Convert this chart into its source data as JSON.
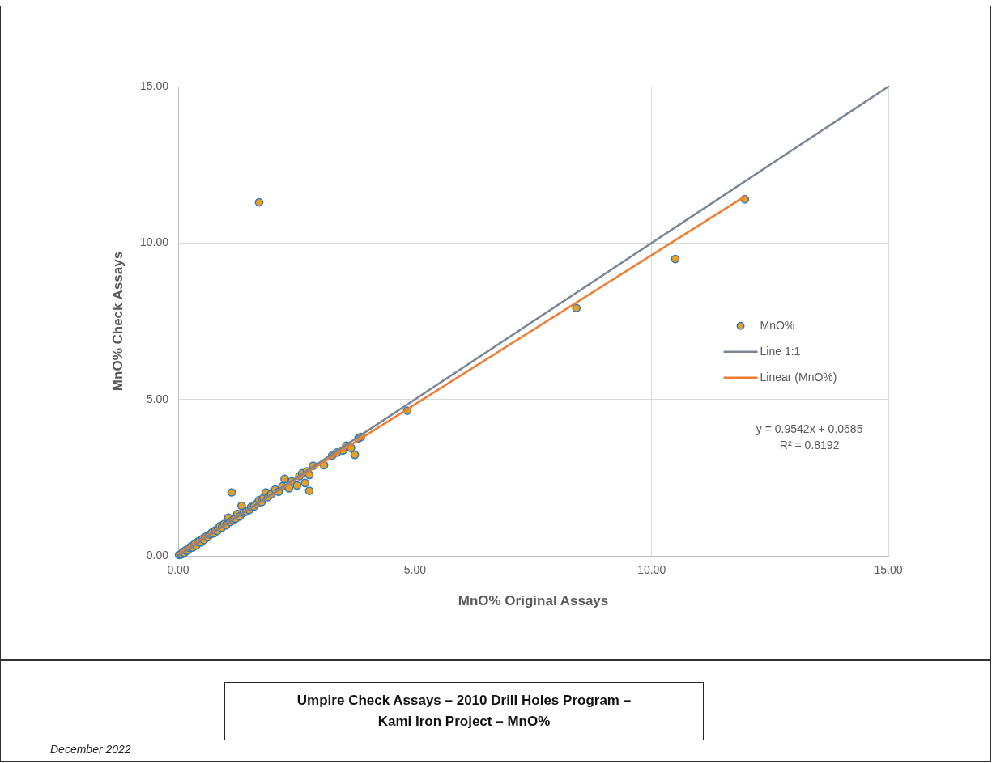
{
  "chart_data": {
    "type": "scatter",
    "title": "Umpire Check Assays – 2010 Drill Holes Program – Kami Iron Project – MnO%",
    "xlabel": "MnO% Original Assays",
    "ylabel": "MnO% Check Assays",
    "annotations": [
      "y = 0.9542x + 0.0685",
      "R² = 0.8192",
      "December 2022"
    ],
    "xlim": [
      0,
      15
    ],
    "ylim": [
      0,
      15
    ],
    "xticks": [
      {
        "value": 0,
        "label": "0.00"
      },
      {
        "value": 5,
        "label": "5.00"
      },
      {
        "value": 10,
        "label": "10.00"
      },
      {
        "value": 15,
        "label": "15.00"
      }
    ],
    "yticks": [
      {
        "value": 0,
        "label": "0.00"
      },
      {
        "value": 5,
        "label": "5.00"
      },
      {
        "value": 10,
        "label": "10.00"
      },
      {
        "value": 15,
        "label": "15.00"
      }
    ],
    "grid": true,
    "legend": "right",
    "marker": "circle",
    "series": [
      {
        "name": "MnO%",
        "color": "#e8a020",
        "x": [
          0.02,
          0.05,
          0.08,
          0.1,
          0.13,
          0.16,
          0.2,
          0.24,
          0.28,
          0.31,
          0.35,
          0.38,
          0.42,
          0.45,
          0.48,
          0.52,
          0.55,
          0.59,
          0.63,
          0.68,
          0.71,
          0.75,
          0.79,
          0.83,
          0.88,
          0.92,
          0.97,
          1.01,
          1.06,
          1.1,
          1.13,
          1.16,
          1.21,
          1.25,
          1.3,
          1.34,
          1.38,
          1.44,
          1.5,
          1.54,
          1.6,
          1.66,
          1.71,
          1.71,
          1.76,
          1.8,
          1.85,
          1.9,
          1.96,
          2.05,
          2.12,
          2.2,
          2.25,
          2.34,
          2.4,
          2.51,
          2.56,
          2.62,
          2.68,
          2.72,
          2.77,
          2.77,
          2.85,
          3.08,
          3.25,
          3.35,
          3.48,
          3.55,
          3.65,
          3.73,
          3.81,
          3.86,
          4.84,
          8.41,
          10.5,
          11.97
        ],
        "values": [
          0.03,
          0.04,
          0.06,
          0.12,
          0.1,
          0.18,
          0.17,
          0.26,
          0.31,
          0.27,
          0.38,
          0.33,
          0.45,
          0.48,
          0.43,
          0.55,
          0.51,
          0.62,
          0.6,
          0.69,
          0.74,
          0.72,
          0.82,
          0.8,
          0.95,
          0.9,
          1.02,
          0.98,
          1.22,
          1.08,
          2.03,
          1.15,
          1.19,
          1.34,
          1.26,
          1.6,
          1.38,
          1.42,
          1.47,
          1.56,
          1.58,
          1.67,
          1.78,
          11.3,
          1.72,
          1.85,
          2.03,
          1.88,
          1.97,
          2.12,
          2.05,
          2.22,
          2.46,
          2.16,
          2.38,
          2.25,
          2.55,
          2.64,
          2.33,
          2.7,
          2.59,
          2.08,
          2.88,
          2.9,
          3.2,
          3.3,
          3.37,
          3.52,
          3.45,
          3.23,
          3.76,
          3.8,
          4.64,
          7.92,
          9.49,
          11.4
        ]
      },
      {
        "name": "Line 1:1",
        "type": "line",
        "marker": "none",
        "color": "#7a8595",
        "x": [
          0,
          15
        ],
        "values": [
          0,
          15
        ]
      },
      {
        "name": "Linear (MnO%)",
        "type": "line",
        "marker": "none",
        "color": "#ed7d31",
        "x": [
          0,
          11.97
        ],
        "values": [
          0.07,
          11.49
        ]
      }
    ]
  }
}
